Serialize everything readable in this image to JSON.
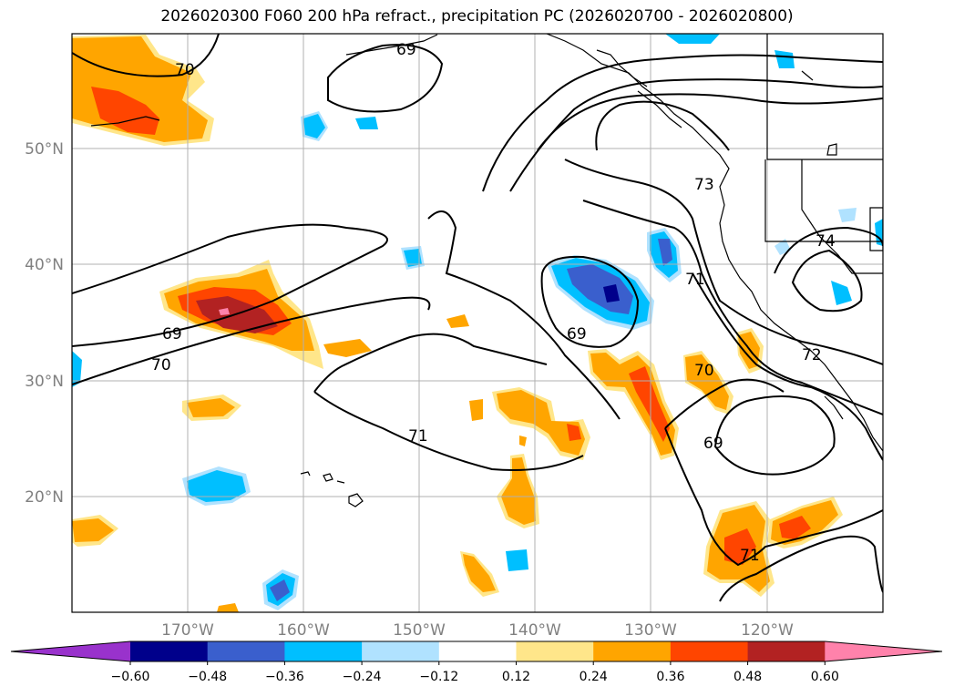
{
  "title": "2026020300 F060 200 hPa refract., precipitation PC (2026020700 - 2026020800)",
  "map": {
    "lat_labels": [
      "50°N",
      "40°N",
      "30°N",
      "20°N"
    ],
    "lon_labels": [
      "170°W",
      "160°W",
      "150°W",
      "140°W",
      "130°W",
      "120°W"
    ],
    "contour_levels": [
      "69",
      "70",
      "71",
      "73",
      "74",
      "72"
    ]
  },
  "colorbar": {
    "ticks": [
      "−0.60",
      "−0.48",
      "−0.36",
      "−0.24",
      "−0.12",
      "0.12",
      "0.24",
      "0.36",
      "0.48",
      "0.60"
    ],
    "colors": [
      "#9932cc",
      "#00008b",
      "#3a5fcd",
      "#00bfff",
      "#b0e2ff",
      "#ffffff",
      "#ffe68a",
      "#ffa500",
      "#ff4500",
      "#b22222",
      "#ff82ab"
    ]
  },
  "chart_data": {
    "type": "heatmap",
    "title": "2026020300 F060 200 hPa refract., precipitation PC (2026020700 - 2026020800)",
    "field": "precipitation PC (filled), 200 hPa refractivity (contours)",
    "lon_range": [
      -180,
      -110
    ],
    "lat_range": [
      10,
      60
    ],
    "colorbar_levels": [
      -0.6,
      -0.48,
      -0.36,
      -0.24,
      -0.12,
      0.12,
      0.24,
      0.36,
      0.48,
      0.6
    ],
    "contour_values": [
      69,
      70,
      71,
      72,
      73,
      74
    ]
  }
}
